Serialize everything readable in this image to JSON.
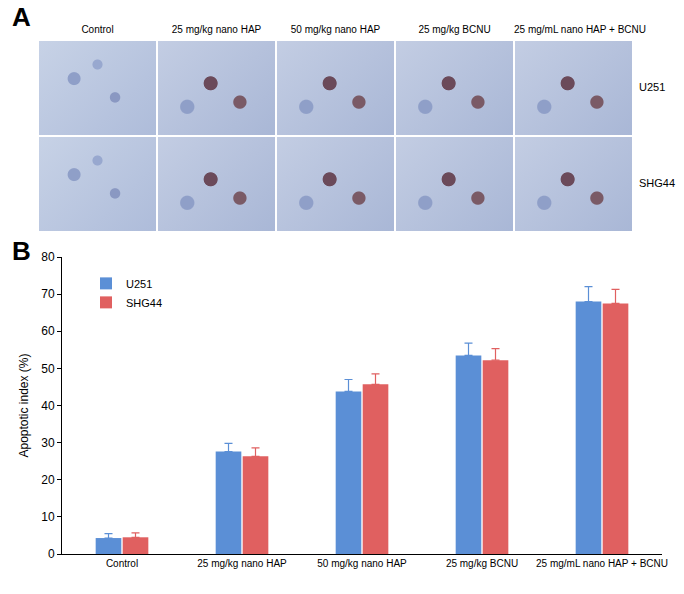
{
  "figure": {
    "panel_a": {
      "label": "A",
      "columns": [
        "Control",
        "25 mg/kg nano HAP",
        "50 mg/kg nano HAP",
        "25 mg/kg BCNU",
        "25 mg/mL nano HAP + BCNU"
      ],
      "rows": [
        "U251",
        "SHG44"
      ]
    },
    "panel_b_label": "B"
  },
  "chart_data": {
    "type": "bar",
    "categories": [
      "Control",
      "25 mg/kg nano HAP",
      "50 mg/kg nano HAP",
      "25 mg/kg BCNU",
      "25 mg/mL nano HAP + BCNU"
    ],
    "series": [
      {
        "name": "U251",
        "color": "#5b8fd6",
        "values": [
          4.3,
          27.6,
          43.8,
          53.5,
          68.0
        ],
        "errors": [
          1.2,
          2.2,
          3.2,
          3.3,
          4.0
        ]
      },
      {
        "name": "SHG44",
        "color": "#e06060",
        "values": [
          4.5,
          26.3,
          45.7,
          52.2,
          67.5
        ],
        "errors": [
          1.2,
          2.3,
          2.8,
          3.1,
          3.8
        ]
      }
    ],
    "y_label": "Apoptotic index (%)",
    "ylim": [
      0,
      80
    ],
    "yticks": [
      0,
      10,
      20,
      30,
      40,
      50,
      60,
      70,
      80
    ],
    "grid": false,
    "legend": "upper left"
  }
}
